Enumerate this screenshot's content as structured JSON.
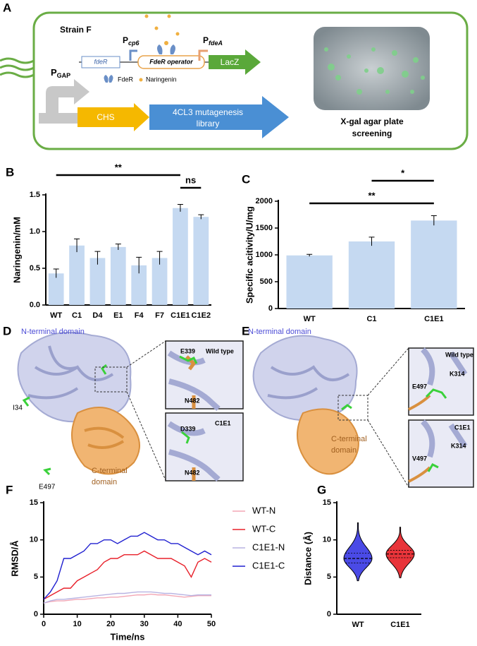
{
  "panel_a": {
    "label": "A",
    "strain": "Strain F",
    "p_cp6": {
      "main": "P",
      "sub": "cp6"
    },
    "fder_gene": "fdeR",
    "operator": "FdeR operator",
    "p_fdea": {
      "main": "P",
      "sub": "fdeA"
    },
    "lacz": "LacZ",
    "legend": [
      "FdeR",
      "Naringenin"
    ],
    "p_gap": {
      "main": "P",
      "sub": "GAP"
    },
    "chs": "CHS",
    "library": [
      "4CL3 mutagenesis",
      "library"
    ],
    "plate_caption": [
      "X-gal agar plate",
      "screening"
    ]
  },
  "panel_d": {
    "label": "D",
    "n_domain": "N-terminal domain",
    "c_domain": [
      "C-terminal",
      "domain"
    ],
    "residues": [
      "I34",
      "E497"
    ],
    "insets": [
      {
        "residue": "E339",
        "variant": "Wild type",
        "partner": "N482"
      },
      {
        "residue": "D339",
        "variant": "C1E1",
        "partner": "N482"
      }
    ]
  },
  "panel_e": {
    "label": "E",
    "n_domain": "N-terminal domain",
    "c_domain": [
      "C-terminal",
      "domain"
    ],
    "insets": [
      {
        "residue": "E497",
        "variant": "Wild type",
        "partner": "K314"
      },
      {
        "residue": "V497",
        "variant": "C1E1",
        "partner": "K314"
      }
    ]
  },
  "chart_data": [
    {
      "type": "bar",
      "label": "B",
      "ylabel": "Naringenin/mM",
      "color": "#c5d9f1",
      "categories": [
        "WT",
        "C1",
        "D4",
        "E1",
        "F4",
        "F7",
        "C1E1",
        "C1E2"
      ],
      "values": [
        0.43,
        0.81,
        0.64,
        0.79,
        0.54,
        0.64,
        1.32,
        1.2
      ],
      "errors": [
        0.06,
        0.09,
        0.09,
        0.04,
        0.11,
        0.09,
        0.05,
        0.03
      ],
      "ylim": [
        0,
        1.5
      ],
      "yticks": [
        {
          "value": 0,
          "label": "0.0"
        },
        0.5,
        {
          "value": 1,
          "label": "1.0"
        },
        1.5
      ],
      "annotations": [
        {
          "text": "**",
          "span": [
            0,
            6
          ]
        },
        {
          "text": "ns",
          "span": [
            6,
            7
          ]
        }
      ]
    },
    {
      "type": "bar",
      "label": "C",
      "ylabel": "Specific acitivity/U/mg",
      "color": "#c5d9f1",
      "categories": [
        "WT",
        "C1",
        "C1E1"
      ],
      "values": [
        990,
        1250,
        1640
      ],
      "errors": [
        20,
        80,
        90
      ],
      "ylim": [
        0,
        2000
      ],
      "yticks": [
        0,
        500,
        1000,
        1500,
        2000
      ],
      "annotations": [
        {
          "text": "**",
          "span": [
            0,
            2
          ]
        },
        {
          "text": "*",
          "span": [
            1,
            2
          ]
        }
      ]
    },
    {
      "type": "line",
      "label": "F",
      "xlabel": "Time/ns",
      "ylabel": "RMSD/Å",
      "x": [
        0,
        2,
        4,
        6,
        8,
        10,
        12,
        14,
        16,
        18,
        20,
        22,
        24,
        26,
        28,
        30,
        32,
        34,
        36,
        38,
        40,
        42,
        44,
        46,
        48,
        50
      ],
      "xlim": [
        0,
        50
      ],
      "xticks": [
        0,
        10,
        20,
        30,
        40,
        50
      ],
      "ylim": [
        0,
        15
      ],
      "yticks": [
        0,
        5,
        10,
        15
      ],
      "series": [
        {
          "name": "WT-N",
          "color": "#f3a7b5",
          "values": [
            1.5,
            1.7,
            1.8,
            1.8,
            1.9,
            2,
            2,
            2.1,
            2.2,
            2.2,
            2.3,
            2.3,
            2.4,
            2.5,
            2.6,
            2.6,
            2.7,
            2.6,
            2.6,
            2.5,
            2.4,
            2.3,
            2.4,
            2.5,
            2.5,
            2.5
          ]
        },
        {
          "name": "WT-C",
          "color": "#e8202a",
          "values": [
            2,
            2.5,
            3,
            3.5,
            3.5,
            4.5,
            5,
            5.5,
            6,
            7,
            7.5,
            7.5,
            8,
            8,
            8,
            8.5,
            8,
            7.5,
            7.5,
            7.5,
            7,
            6.5,
            5,
            7,
            7.5,
            7
          ]
        },
        {
          "name": "C1E1-N",
          "color": "#b8b3e2",
          "values": [
            1.5,
            1.8,
            2,
            2,
            2.1,
            2.2,
            2.3,
            2.4,
            2.5,
            2.6,
            2.7,
            2.8,
            2.8,
            2.9,
            3,
            3,
            3,
            2.9,
            2.8,
            2.8,
            2.7,
            2.6,
            2.5,
            2.6,
            2.6,
            2.6
          ]
        },
        {
          "name": "C1E1-C",
          "color": "#2020d0",
          "values": [
            2,
            3,
            4.5,
            7.5,
            7.5,
            8,
            8.5,
            9.5,
            9.5,
            10,
            10,
            9.5,
            10,
            10.5,
            10.5,
            11,
            10.5,
            10,
            10,
            9.5,
            9.5,
            9,
            8.5,
            8,
            8.5,
            8
          ]
        }
      ]
    },
    {
      "type": "violin",
      "label": "G",
      "ylabel": "Distance (Å)",
      "categories": [
        "WT",
        "C1E1"
      ],
      "colors": [
        "#4a4ae6",
        "#e8343a"
      ],
      "medians": [
        7.5,
        8.1
      ],
      "q1s": [
        6.9,
        7.6
      ],
      "q3s": [
        8.2,
        8.6
      ],
      "mins": [
        4.5,
        4.9
      ],
      "maxs": [
        12.3,
        11.7
      ],
      "ylim": [
        0,
        15
      ],
      "yticks": [
        0,
        5,
        10,
        15
      ]
    }
  ]
}
